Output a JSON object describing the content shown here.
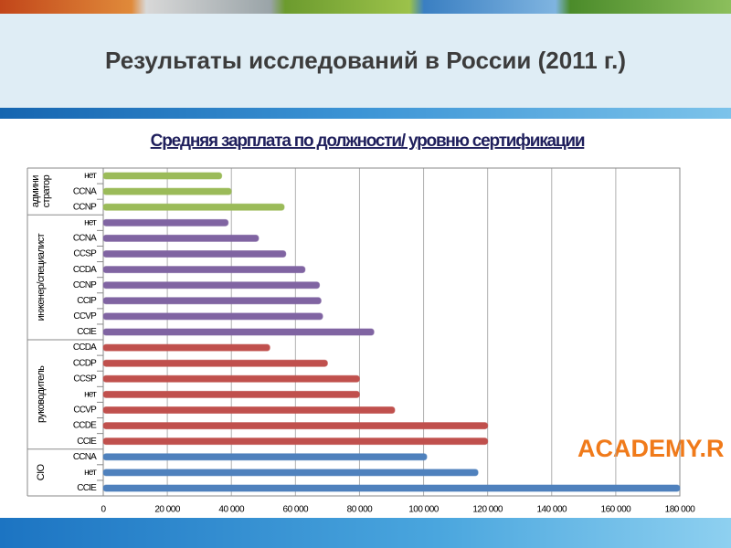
{
  "header": {
    "title": "Результаты исследований в России (2011 г.)"
  },
  "logo": "ACADEMY.R",
  "chart_data": {
    "type": "bar",
    "orientation": "horizontal",
    "title": "Средняя зарплата по должности/ уровню сертификации",
    "groups": [
      {
        "name": [
          "админи",
          "стратор"
        ],
        "color": "#9bbb59",
        "categories": [
          "нет",
          "CCNA",
          "CCNP"
        ],
        "values": [
          37000,
          40000,
          56500
        ]
      },
      {
        "name": [
          "инженер/специалист"
        ],
        "color": "#8064a2",
        "categories": [
          "нет",
          "CCNA",
          "CCSP",
          "CCDA",
          "CCNP",
          "CCIP",
          "CCVP",
          "CCIE"
        ],
        "values": [
          39000,
          48500,
          57000,
          63000,
          67500,
          68000,
          68500,
          84500
        ]
      },
      {
        "name": [
          "руководитель"
        ],
        "color": "#c0504d",
        "categories": [
          "CCDA",
          "CCDP",
          "CCSP",
          "нет",
          "CCVP",
          "CCDE",
          "CCIE"
        ],
        "values": [
          52000,
          70000,
          80000,
          80000,
          91000,
          120000,
          120000
        ]
      },
      {
        "name": [
          "CIO"
        ],
        "color": "#4f81bd",
        "categories": [
          "CCNA",
          "нет",
          "CCIE"
        ],
        "values": [
          101000,
          117000,
          180000
        ]
      }
    ],
    "xlim": [
      0,
      180000
    ],
    "xticks": [
      0,
      {
        "value": 20000,
        "label": "20 000"
      },
      {
        "value": 40000,
        "label": "40 000"
      },
      {
        "value": 60000,
        "label": "60 000"
      },
      {
        "value": 80000,
        "label": "80 000"
      },
      {
        "value": 100000,
        "label": "100 000"
      },
      {
        "value": 120000,
        "label": "120 000"
      },
      {
        "value": 140000,
        "label": "140 000"
      },
      {
        "value": 160000,
        "label": "160 000"
      },
      {
        "value": 180000,
        "label": "180 000"
      }
    ],
    "grid": true
  }
}
